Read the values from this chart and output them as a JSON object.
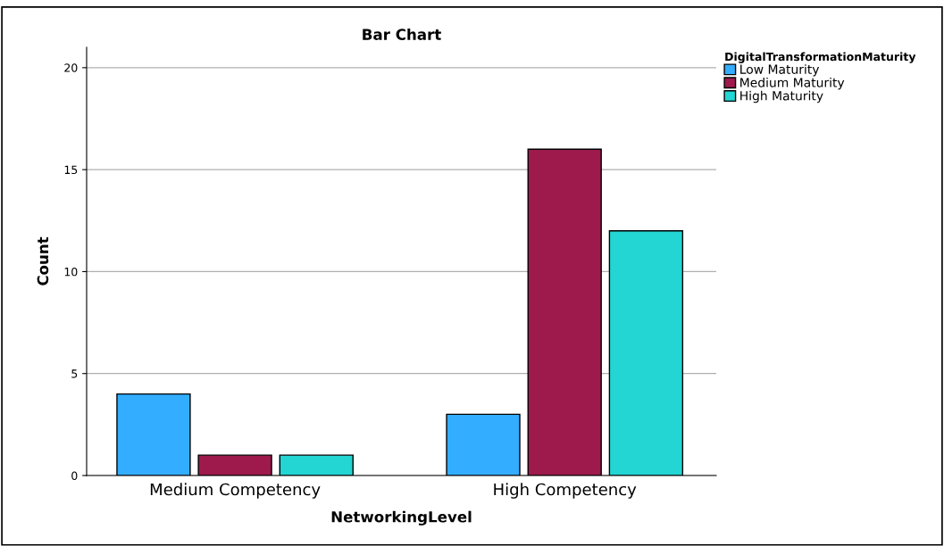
{
  "chart_data": {
    "type": "bar",
    "title": "Bar Chart",
    "xlabel": "NetworkingLevel",
    "ylabel": "Count",
    "legend_title": "DigitalTransformationMaturity",
    "categories": [
      "Medium Competency",
      "High Competency"
    ],
    "series": [
      {
        "name": "Low Maturity",
        "color": "#33adff",
        "values": [
          4,
          3
        ]
      },
      {
        "name": "Medium Maturity",
        "color": "#9e1a4c",
        "values": [
          1,
          16
        ]
      },
      {
        "name": "High Maturity",
        "color": "#23d5d3",
        "values": [
          1,
          12
        ]
      }
    ],
    "ylim": [
      0,
      21
    ],
    "yticks": [
      0,
      5,
      10,
      15,
      20
    ],
    "grid": "y",
    "legend": "top right"
  }
}
